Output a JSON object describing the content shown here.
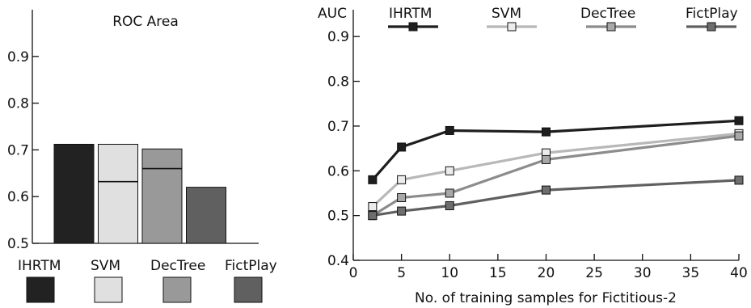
{
  "chart_data": [
    {
      "type": "bar",
      "title": "ROC Area",
      "categories": [
        "IHRTM",
        "SVM",
        "DecTree",
        "FictPlay"
      ],
      "values": [
        0.712,
        0.712,
        0.702,
        0.62
      ],
      "inner_marks": [
        null,
        0.632,
        0.66,
        null
      ],
      "yticks": [
        0.5,
        0.6,
        0.7,
        0.8,
        0.9
      ],
      "ylim": [
        0.5,
        1.0
      ],
      "colors": [
        "#222222",
        "#e0e0e0",
        "#999999",
        "#606060"
      ],
      "legend_position": "bottom"
    },
    {
      "type": "line",
      "ylabel": "AUC",
      "xlabel": "No. of training samples for Fictitious-2",
      "xlim": [
        0,
        40
      ],
      "ylim": [
        0.4,
        0.96
      ],
      "xticks": [
        0,
        5,
        10,
        15,
        20,
        25,
        30,
        35,
        40
      ],
      "yticks": [
        0.4,
        0.5,
        0.6,
        0.7,
        0.8,
        0.9
      ],
      "legend_position": "top",
      "series": [
        {
          "name": "IHRTM",
          "color": "#1e1e1e",
          "marker_fill": "#1e1e1e",
          "x": [
            2,
            5,
            10,
            20,
            40
          ],
          "y": [
            0.58,
            0.653,
            0.69,
            0.687,
            0.712
          ]
        },
        {
          "name": "SVM",
          "color": "#b8b8b8",
          "marker_fill": "#ececec",
          "x": [
            2,
            5,
            10,
            20,
            40
          ],
          "y": [
            0.52,
            0.58,
            0.6,
            0.64,
            0.683
          ]
        },
        {
          "name": "DecTree",
          "color": "#8c8c8c",
          "marker_fill": "#a8a8a8",
          "x": [
            2,
            5,
            10,
            20,
            40
          ],
          "y": [
            0.5,
            0.54,
            0.55,
            0.625,
            0.678
          ]
        },
        {
          "name": "FictPlay",
          "color": "#606060",
          "marker_fill": "#6e6e6e",
          "x": [
            2,
            5,
            10,
            20,
            40
          ],
          "y": [
            0.5,
            0.51,
            0.522,
            0.557,
            0.579
          ]
        }
      ]
    }
  ]
}
